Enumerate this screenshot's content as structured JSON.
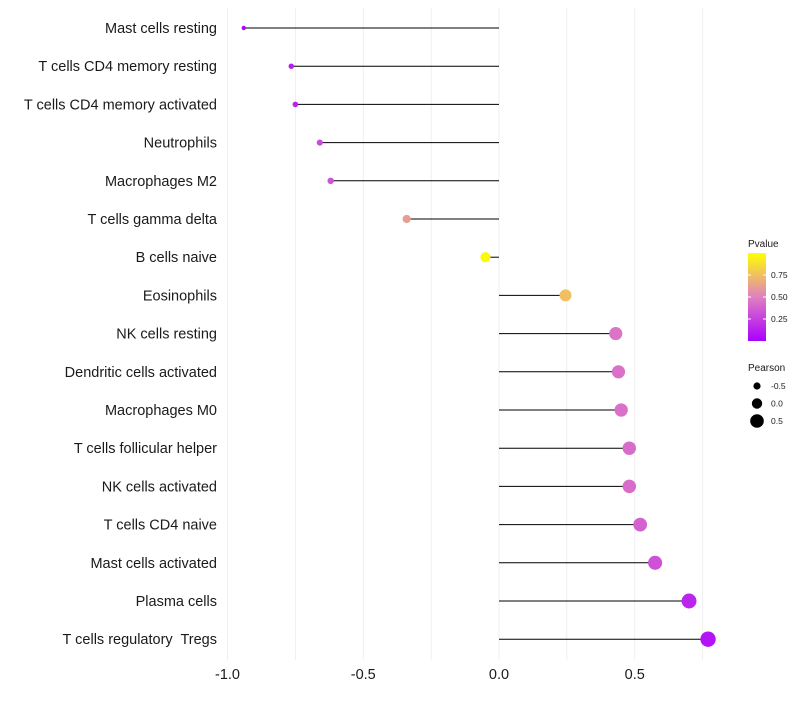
{
  "chart_data": {
    "type": "lollipop",
    "xlabel": "",
    "ylabel": "",
    "xlim": [
      -1.05,
      0.8
    ],
    "x_ticks": [
      -1.0,
      -0.5,
      0.0,
      0.5
    ],
    "x_tick_labels": [
      "-1.0",
      "-0.5",
      "0.0",
      "0.5"
    ],
    "baseline": 0.0,
    "grid": true,
    "categories": [
      "Mast cells resting",
      "T cells CD4 memory resting",
      "T cells CD4 memory activated",
      "Neutrophils",
      "Macrophages M2",
      "T cells gamma delta",
      "B cells naive",
      "Eosinophils",
      "NK cells resting",
      "Dendritic cells activated",
      "Macrophages M0",
      "T cells follicular helper",
      "NK cells activated",
      "T cells CD4 naive",
      "Mast cells activated",
      "Plasma cells",
      "T cells regulatory  Tregs"
    ],
    "pearson": [
      -0.94,
      -0.765,
      -0.75,
      -0.66,
      -0.62,
      -0.34,
      -0.05,
      0.245,
      0.43,
      0.44,
      0.45,
      0.48,
      0.48,
      0.52,
      0.575,
      0.7,
      0.77
    ],
    "pvalue": [
      0.02,
      0.12,
      0.14,
      0.3,
      0.32,
      0.62,
      0.97,
      0.75,
      0.45,
      0.44,
      0.44,
      0.42,
      0.42,
      0.38,
      0.32,
      0.15,
      0.08
    ],
    "legend_pvalue": {
      "title": "Pvalue",
      "ticks": [
        0.25,
        0.5,
        0.75
      ],
      "tick_labels": [
        "0.25",
        "0.50",
        "0.75"
      ],
      "range": [
        0.0,
        1.0
      ],
      "colors": [
        "#aa00ff",
        "#e080c0",
        "#ffff00"
      ]
    },
    "legend_pearson": {
      "title": "Pearson",
      "values": [
        -0.5,
        0.0,
        0.5
      ],
      "labels": [
        "-0.5",
        "0.0",
        "0.5"
      ]
    }
  }
}
